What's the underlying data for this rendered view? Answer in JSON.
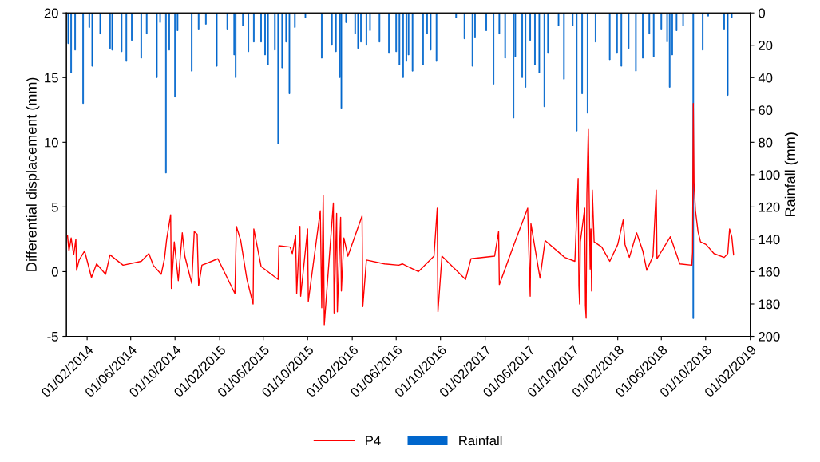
{
  "chart_data": {
    "type": "line",
    "ylabel": "Differential displacement (mm)",
    "y2label": "Rainfall (mm)",
    "xlim": [
      "2013-12-06",
      "2019-02-01"
    ],
    "xticks": [
      {
        "value": "2014-02-01",
        "label": "01/02/2014"
      },
      {
        "value": "2014-06-01",
        "label": "01/06/2014"
      },
      {
        "value": "2014-10-01",
        "label": "01/10/2014"
      },
      {
        "value": "2015-02-01",
        "label": "01/02/2015"
      },
      {
        "value": "2015-06-01",
        "label": "01/06/2015"
      },
      {
        "value": "2015-10-01",
        "label": "01/10/2015"
      },
      {
        "value": "2016-02-01",
        "label": "01/02/2016"
      },
      {
        "value": "2016-06-01",
        "label": "01/06/2016"
      },
      {
        "value": "2016-10-01",
        "label": "01/10/2016"
      },
      {
        "value": "2017-02-01",
        "label": "01/02/2017"
      },
      {
        "value": "2017-06-01",
        "label": "01/06/2017"
      },
      {
        "value": "2017-10-01",
        "label": "01/10/2017"
      },
      {
        "value": "2018-02-01",
        "label": "01/02/2018"
      },
      {
        "value": "2018-06-01",
        "label": "01/06/2018"
      },
      {
        "value": "2018-10-01",
        "label": "01/10/2018"
      },
      {
        "value": "2019-02-01",
        "label": "01/02/2019"
      }
    ],
    "ylim": [
      -5,
      20
    ],
    "yticks": [
      -5,
      0,
      5,
      10,
      15,
      20
    ],
    "y2lim": [
      200,
      0
    ],
    "y2ticks": [
      0,
      20,
      40,
      60,
      80,
      100,
      120,
      140,
      160,
      180,
      200
    ],
    "grid": false,
    "legend": "bottom",
    "marker": "none",
    "line_style": "solid",
    "series": [
      {
        "name": "Rainfall",
        "type": "bar",
        "axis": "y2",
        "color": "#0066cc",
        "x": [
          "2013-12-11",
          "2013-12-19",
          "2013-12-30",
          "2014-01-21",
          "2014-02-07",
          "2014-02-15",
          "2014-03-09",
          "2014-04-05",
          "2014-04-11",
          "2014-05-07",
          "2014-05-20",
          "2014-06-04",
          "2014-06-30",
          "2014-07-15",
          "2014-08-12",
          "2014-08-21",
          "2014-09-06",
          "2014-09-15",
          "2014-10-01",
          "2014-10-08",
          "2014-11-16",
          "2014-12-05",
          "2014-12-25",
          "2015-01-24",
          "2015-02-22",
          "2015-03-13",
          "2015-03-17",
          "2015-04-06",
          "2015-04-21",
          "2015-05-06",
          "2015-05-26",
          "2015-06-06",
          "2015-06-14",
          "2015-07-03",
          "2015-07-12",
          "2015-07-23",
          "2015-08-03",
          "2015-08-12",
          "2015-08-27",
          "2015-09-25",
          "2015-11-09",
          "2015-12-07",
          "2015-12-18",
          "2015-12-29",
          "2016-01-02",
          "2016-01-15",
          "2016-02-09",
          "2016-02-17",
          "2016-02-25",
          "2016-03-11",
          "2016-03-21",
          "2016-04-16",
          "2016-05-12",
          "2016-06-01",
          "2016-06-10",
          "2016-06-20",
          "2016-06-29",
          "2016-07-05",
          "2016-07-16",
          "2016-08-14",
          "2016-08-25",
          "2016-09-04",
          "2016-09-20",
          "2016-11-13",
          "2016-12-06",
          "2016-12-28",
          "2017-01-04",
          "2017-02-04",
          "2017-02-24",
          "2017-03-12",
          "2017-03-28",
          "2017-04-20",
          "2017-04-25",
          "2017-05-14",
          "2017-05-23",
          "2017-06-05",
          "2017-06-18",
          "2017-06-30",
          "2017-07-14",
          "2017-07-24",
          "2017-08-22",
          "2017-09-06",
          "2017-09-30",
          "2017-10-11",
          "2017-10-26",
          "2017-11-10",
          "2017-12-02",
          "2018-01-10",
          "2018-01-30",
          "2018-02-11",
          "2018-03-03",
          "2018-03-23",
          "2018-04-11",
          "2018-04-29",
          "2018-05-11",
          "2018-06-01",
          "2018-06-17",
          "2018-06-24",
          "2018-07-01",
          "2018-07-13",
          "2018-07-31",
          "2018-08-28",
          "2018-09-23",
          "2018-10-08",
          "2018-11-21",
          "2018-12-01",
          "2018-12-12"
        ],
        "values": [
          19,
          37,
          23,
          56,
          9,
          33,
          13,
          22,
          23,
          24,
          30,
          17,
          28,
          13,
          40,
          6,
          99,
          23,
          52,
          11,
          36,
          10,
          7,
          33,
          10,
          26,
          40,
          8,
          24,
          18,
          18,
          26,
          32,
          23,
          81,
          34,
          18,
          50,
          9,
          3,
          28,
          20,
          24,
          40,
          59,
          6,
          13,
          22,
          18,
          20,
          11,
          18,
          25,
          24,
          32,
          40,
          30,
          26,
          36,
          32,
          13,
          23,
          30,
          3,
          16,
          33,
          15,
          11,
          44,
          13,
          28,
          65,
          27,
          40,
          46,
          17,
          32,
          37,
          58,
          25,
          8,
          41,
          8,
          73,
          50,
          62,
          18,
          29,
          25,
          33,
          22,
          36,
          28,
          13,
          27,
          10,
          18,
          46,
          26,
          11,
          8,
          189,
          23,
          2,
          10,
          51,
          3
        ]
      },
      {
        "name": "P4",
        "axis": "y",
        "color": "#ff0000",
        "x": [
          "2013-12-09",
          "2013-12-13",
          "2013-12-19",
          "2013-12-26",
          "2014-01-01",
          "2014-01-03",
          "2014-01-10",
          "2014-01-25",
          "2014-02-13",
          "2014-02-27",
          "2014-03-24",
          "2014-04-05",
          "2014-05-11",
          "2014-06-30",
          "2014-07-21",
          "2014-08-02",
          "2014-08-24",
          "2014-09-02",
          "2014-09-08",
          "2014-09-19",
          "2014-09-21",
          "2014-09-29",
          "2014-10-10",
          "2014-10-21",
          "2014-10-28",
          "2014-11-16",
          "2014-11-23",
          "2014-12-01",
          "2014-12-05",
          "2014-12-14",
          "2015-01-27",
          "2015-03-15",
          "2015-03-19",
          "2015-03-31",
          "2015-04-17",
          "2015-05-04",
          "2015-05-06",
          "2015-05-26",
          "2015-07-12",
          "2015-07-14",
          "2015-08-14",
          "2015-08-20",
          "2015-08-29",
          "2015-09-01",
          "2015-09-10",
          "2015-09-12",
          "2015-10-01",
          "2015-10-03",
          "2015-11-05",
          "2015-11-09",
          "2015-11-13",
          "2015-11-16",
          "2015-12-11",
          "2015-12-13",
          "2015-12-20",
          "2015-12-22",
          "2015-12-31",
          "2016-01-02",
          "2016-01-09",
          "2016-01-20",
          "2016-02-28",
          "2016-03-01",
          "2016-03-11",
          "2016-04-30",
          "2016-06-08",
          "2016-06-18",
          "2016-08-01",
          "2016-09-13",
          "2016-09-22",
          "2016-09-24",
          "2016-10-05",
          "2016-12-09",
          "2016-12-24",
          "2017-02-27",
          "2017-03-10",
          "2017-03-12",
          "2017-04-20",
          "2017-05-29",
          "2017-06-01",
          "2017-06-05",
          "2017-06-07",
          "2017-07-02",
          "2017-07-16",
          "2017-09-08",
          "2017-10-06",
          "2017-10-15",
          "2017-10-17",
          "2017-10-19",
          "2017-10-21",
          "2017-11-02",
          "2017-11-04",
          "2017-11-06",
          "2017-11-08",
          "2017-11-12",
          "2017-11-17",
          "2017-11-19",
          "2017-11-21",
          "2017-11-23",
          "2017-11-28",
          "2017-12-19",
          "2018-01-10",
          "2018-02-01",
          "2018-02-16",
          "2018-02-21",
          "2018-03-05",
          "2018-03-25",
          "2018-04-11",
          "2018-04-22",
          "2018-05-09",
          "2018-05-18",
          "2018-05-20",
          "2018-06-26",
          "2018-07-22",
          "2018-08-24",
          "2018-08-26",
          "2018-08-28",
          "2018-08-30",
          "2018-09-03",
          "2018-09-10",
          "2018-09-17",
          "2018-10-02",
          "2018-10-24",
          "2018-11-21",
          "2018-12-01",
          "2018-12-06",
          "2018-12-12",
          "2018-12-17"
        ],
        "values": [
          2.8,
          1.6,
          2.6,
          1.3,
          2.5,
          0.1,
          0.9,
          1.6,
          -0.45,
          0.6,
          -0.2,
          1.3,
          0.5,
          0.8,
          1.4,
          0.5,
          -0.2,
          1.0,
          2.5,
          4.4,
          -1.3,
          2.3,
          -0.7,
          3.0,
          1.2,
          -0.9,
          3.1,
          2.9,
          -1.1,
          0.5,
          1.0,
          -1.7,
          3.5,
          2.4,
          -0.6,
          -2.5,
          3.3,
          0.4,
          -0.6,
          2.0,
          1.9,
          1.4,
          2.8,
          -1.7,
          3.5,
          -1.9,
          3.3,
          -2.3,
          4.7,
          -2.8,
          5.9,
          -4.1,
          5.3,
          -3.2,
          4.5,
          -3.1,
          4.2,
          -1.5,
          2.6,
          1.2,
          4.3,
          -2.7,
          0.9,
          0.6,
          0.5,
          0.6,
          0.0,
          1.2,
          4.9,
          -3.1,
          1.2,
          -0.6,
          1.0,
          1.2,
          3.1,
          -1.0,
          2.0,
          4.9,
          1.9,
          -1.9,
          3.7,
          -0.5,
          2.4,
          1.1,
          0.8,
          7.2,
          -1.1,
          -2.5,
          2.3,
          4.9,
          -2.6,
          -3.6,
          6.0,
          11.0,
          0.2,
          3.3,
          -1.5,
          6.3,
          2.3,
          1.9,
          0.8,
          2.1,
          4.0,
          2.1,
          1.1,
          3.0,
          1.6,
          0.1,
          1.2,
          6.3,
          1.0,
          2.7,
          0.6,
          0.5,
          1.5,
          13.0,
          6.9,
          4.7,
          3.1,
          2.3,
          2.1,
          1.4,
          1.1,
          1.4,
          3.3,
          2.7,
          1.3
        ]
      }
    ]
  }
}
